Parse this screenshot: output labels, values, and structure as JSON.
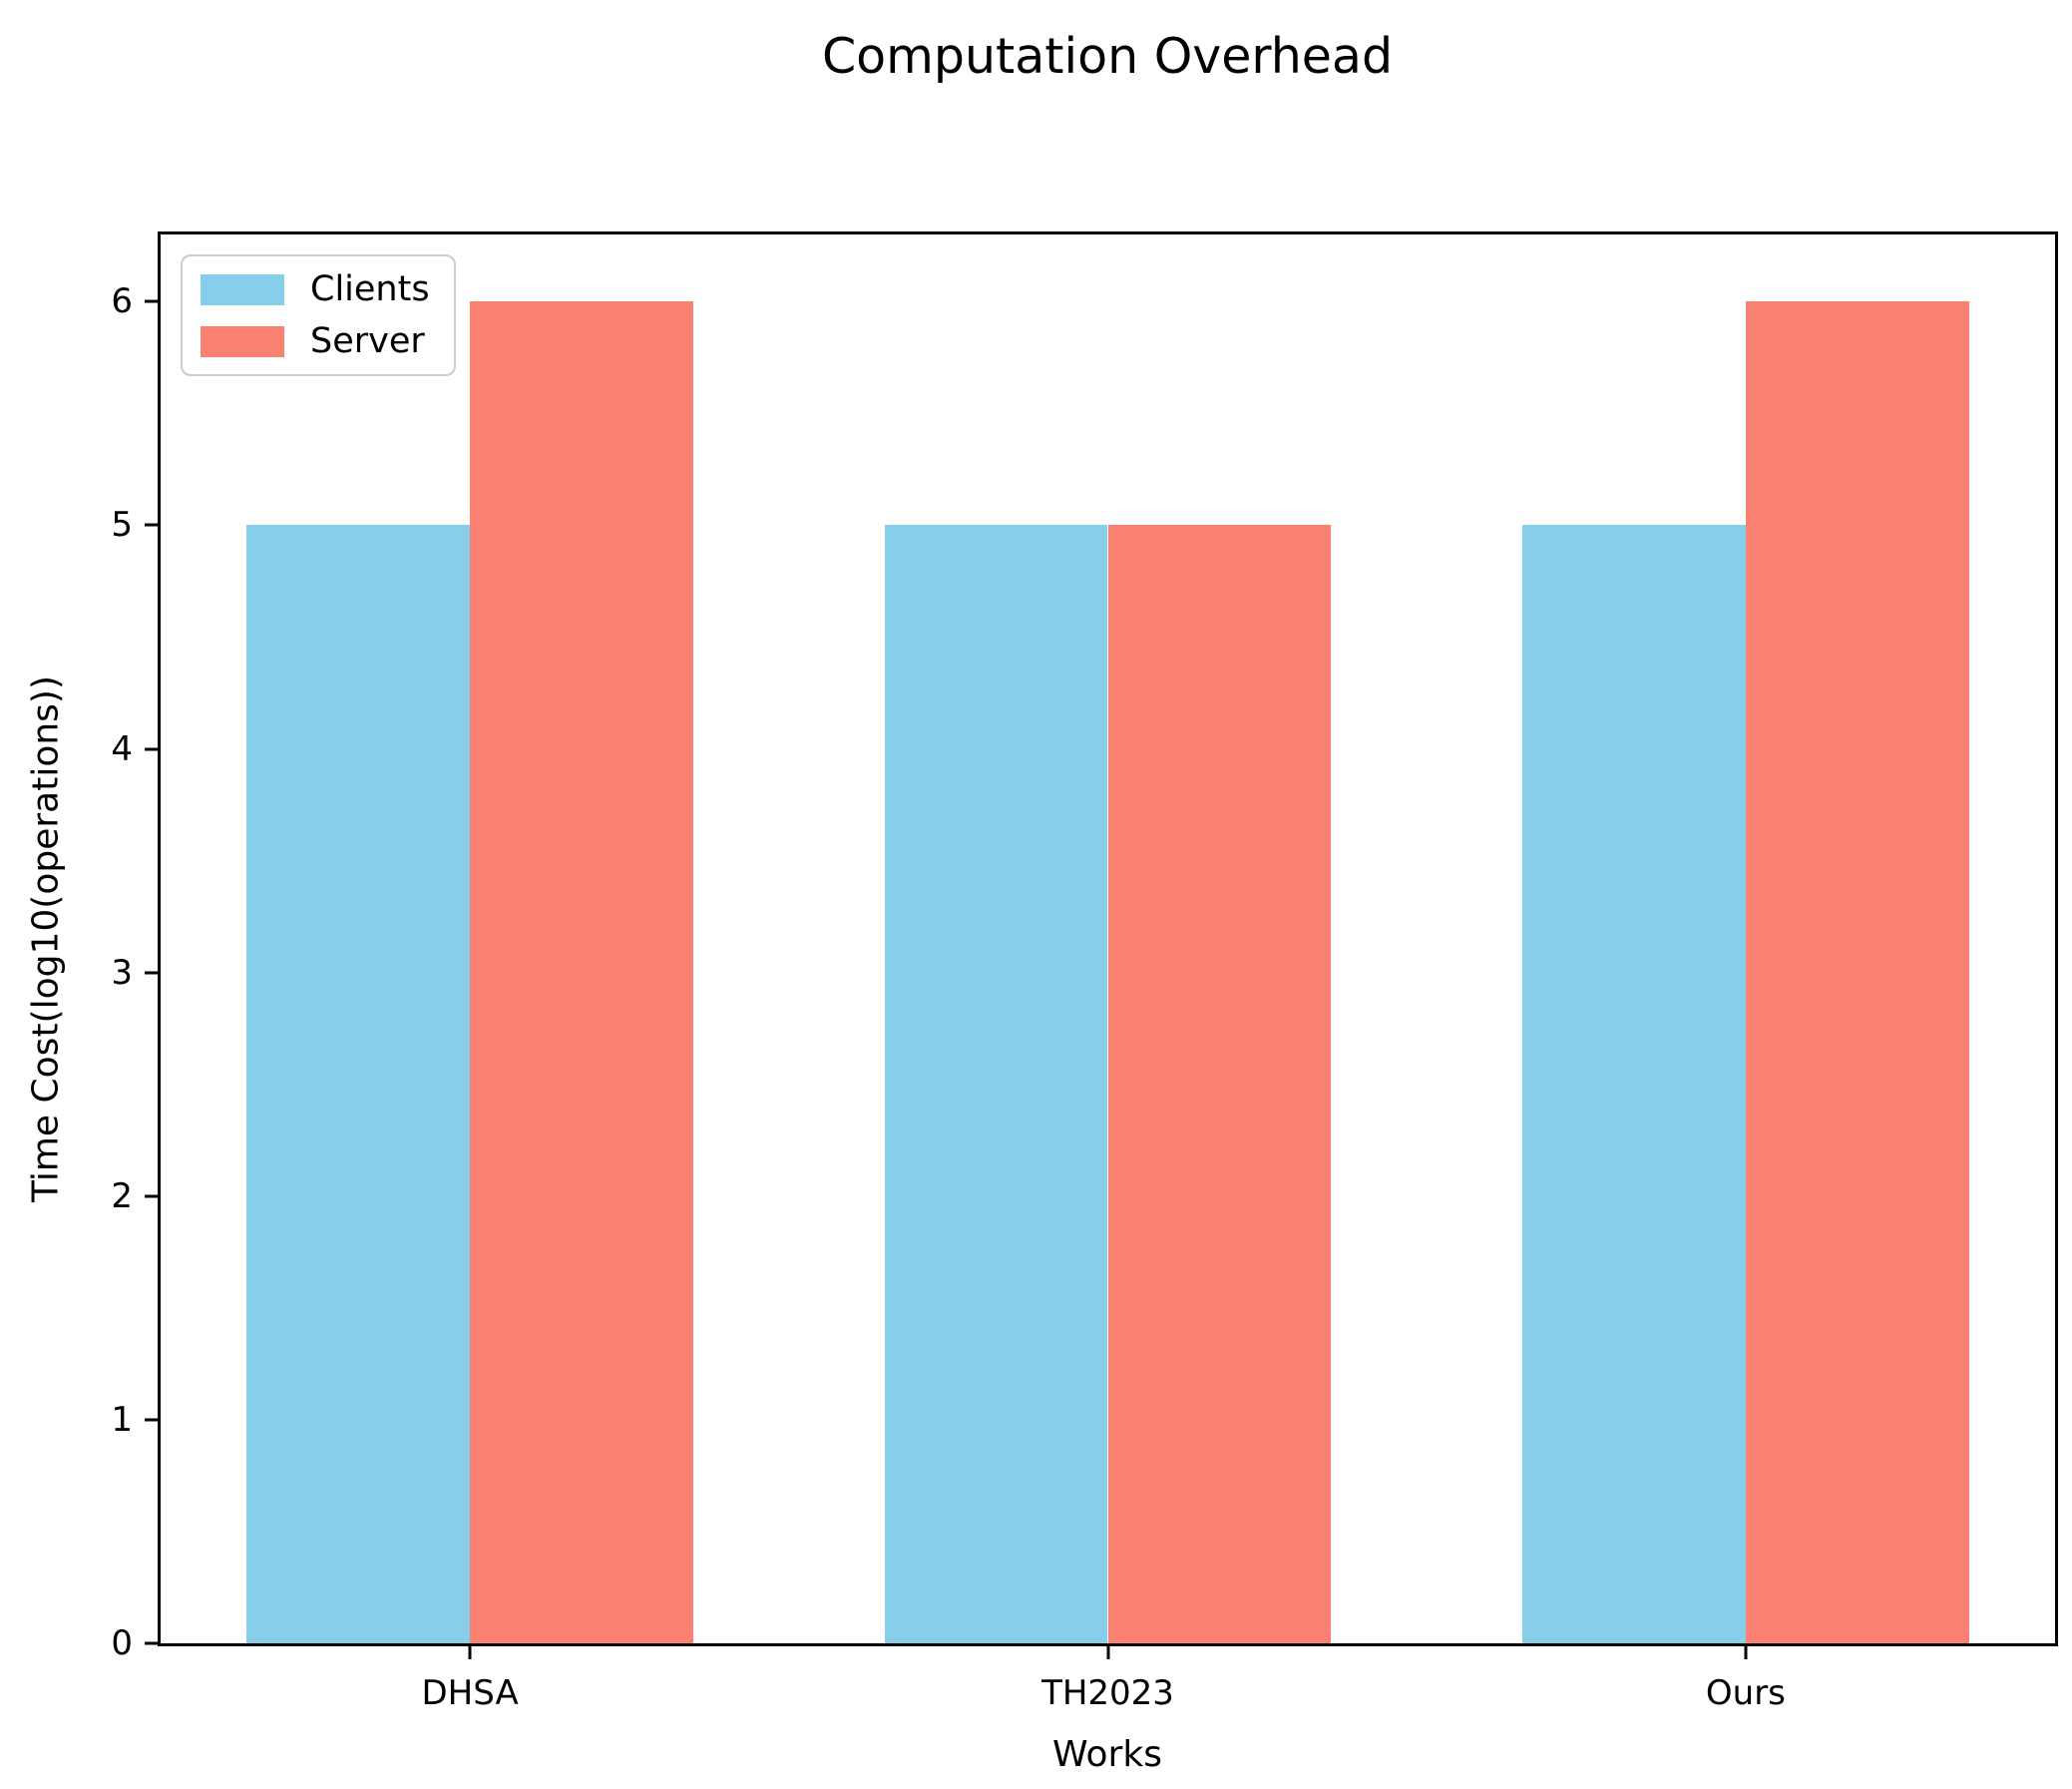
{
  "chart_data": {
    "type": "bar",
    "title": "Computation Overhead",
    "xlabel": "Works",
    "ylabel": "Time Cost(log10(operations))",
    "categories": [
      "DHSA",
      "TH2023",
      "Ours"
    ],
    "series": [
      {
        "name": "Clients",
        "color": "#87CEEB",
        "values": [
          5,
          5,
          5
        ]
      },
      {
        "name": "Server",
        "color": "#FA8072",
        "values": [
          6,
          5,
          6
        ]
      }
    ],
    "yticks": [
      0,
      1,
      2,
      3,
      4,
      5,
      6
    ],
    "ylim": [
      0,
      6.3
    ],
    "bar_width_units": 0.35,
    "x_margin_units": 0.135,
    "grid": false,
    "legend_position": "upper-left",
    "colors": {
      "axis": "#000000",
      "text": "#000000",
      "legend_border": "#cccccc",
      "background": "#ffffff"
    }
  }
}
